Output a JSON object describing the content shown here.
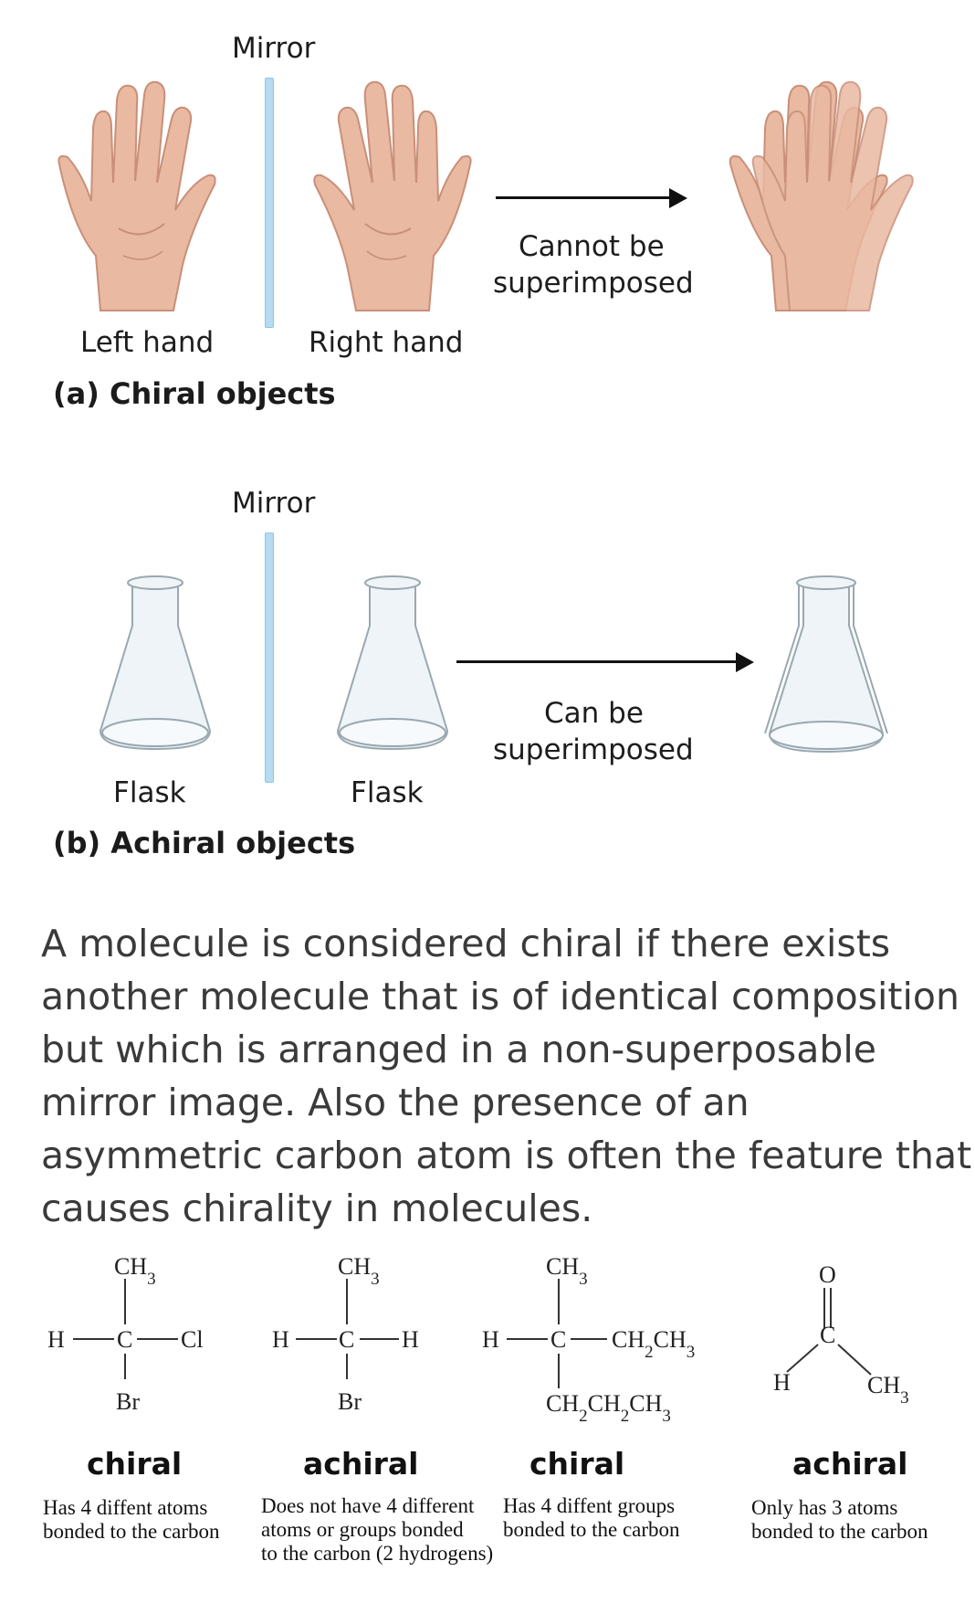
{
  "diagram_a": {
    "mirror_label": "Mirror",
    "left_label": "Left hand",
    "right_label": "Right hand",
    "arrow_text": [
      "Cannot be",
      "superimposed"
    ],
    "caption": "(a) Chiral objects"
  },
  "diagram_b": {
    "mirror_label": "Mirror",
    "left_label": "Flask",
    "right_label": "Flask",
    "arrow_text": [
      "Can be",
      "superimposed"
    ],
    "caption": "(b) Achiral objects"
  },
  "paragraph_lines": [
    "A molecule is considered chiral if there exists",
    "another molecule that is of identical composition",
    "but which is arranged in a non-superposable",
    "mirror image. Also the presence of an",
    "asymmetric carbon atom is often the feature that",
    "causes chirality in molecules."
  ],
  "molecules": [
    {
      "top": "CH3",
      "left": "H",
      "center": "C",
      "right": "Cl",
      "bottom": "Br",
      "verdict": "chiral",
      "note": [
        "Has 4 diffent atoms",
        "bonded to the carbon"
      ]
    },
    {
      "top": "CH3",
      "left": "H",
      "center": "C",
      "right": "H",
      "bottom": "Br",
      "verdict": "achiral",
      "note": [
        "Does not have 4 different",
        "atoms or groups bonded",
        "to the carbon (2 hydrogens)"
      ]
    },
    {
      "top": "CH3",
      "left": "H",
      "center": "C",
      "right": "CH2CH3",
      "bottom": "CH2CH2CH3",
      "verdict": "chiral",
      "note": [
        "Has 4 diffent groups",
        "bonded to the carbon"
      ]
    },
    {
      "top": "O",
      "left": "H",
      "center": "C",
      "right": "CH3",
      "verdict": "achiral",
      "note": [
        "Only has 3 atoms",
        "bonded to the carbon"
      ]
    }
  ],
  "colors": {
    "skin": "#e9b9a2",
    "skin_shadow": "#c98f78",
    "mirror": "#b5dcf2",
    "glass": "#eef4f7"
  }
}
